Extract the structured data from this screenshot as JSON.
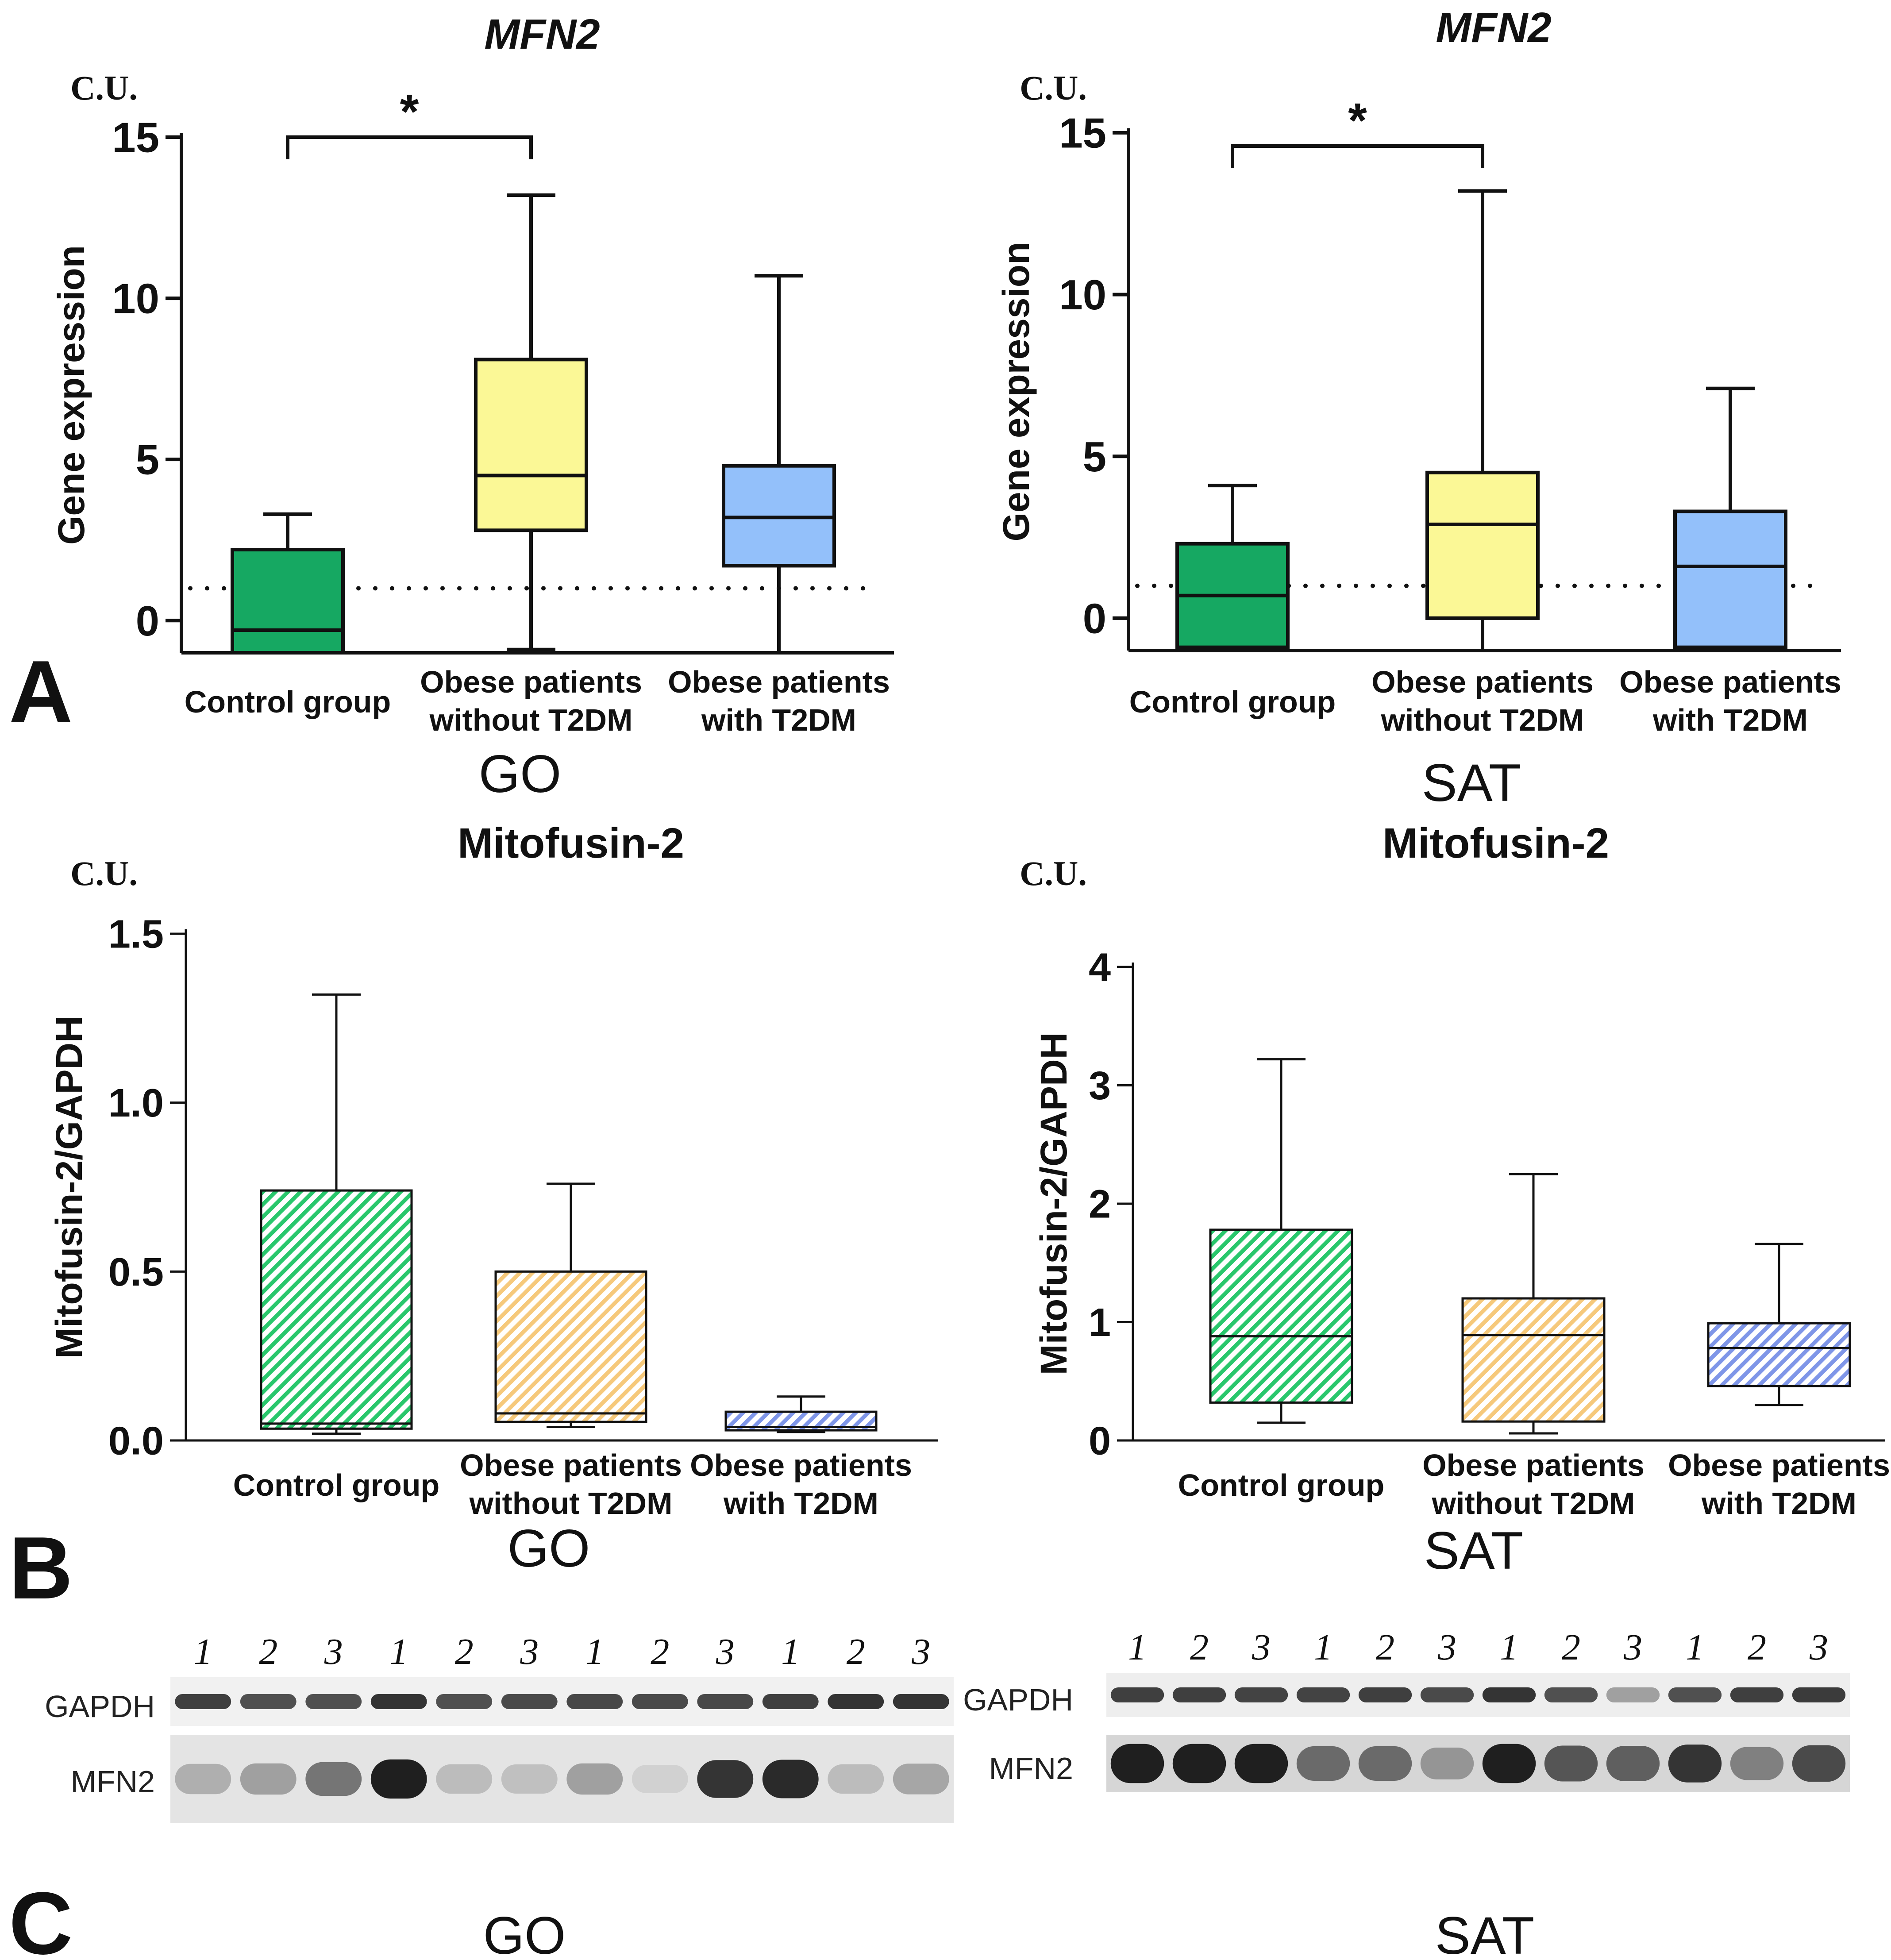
{
  "figure": {
    "panel_labels": [
      "A",
      "B",
      "C"
    ],
    "colors": {
      "control": "#16a862",
      "obese_no_t2dm": "#fbf896",
      "obese_t2dm": "#93c0fa",
      "control_hatch": "#29c76c",
      "obese_no_t2dm_hatch": "#f6c97b",
      "obese_t2dm_hatch": "#7f96e8"
    }
  },
  "chart_data": [
    {
      "id": "A-GO",
      "type": "boxplot",
      "title": "MFN2",
      "unit_label": "C.U.",
      "ylabel": "Gene expression",
      "xlabel": "GO",
      "ylim": [
        -1,
        15
      ],
      "yticks": [
        0,
        5,
        10,
        15
      ],
      "tick_labels": [
        "0",
        "5",
        "10",
        "15"
      ],
      "reference_line": 1,
      "fill": "solid",
      "significance": {
        "from": 0,
        "to": 1,
        "label": "*"
      },
      "groups": [
        {
          "label_lines": [
            "Control group"
          ],
          "min": -1,
          "q1": -1,
          "median": -0.3,
          "q3": 2.2,
          "max": 3.3,
          "color": "#16a862"
        },
        {
          "label_lines": [
            "Obese patients",
            "without T2DM"
          ],
          "min": -0.9,
          "q1": 2.8,
          "median": 4.5,
          "q3": 8.1,
          "max": 13.2,
          "color": "#fbf896"
        },
        {
          "label_lines": [
            "Obese patients",
            "with T2DM"
          ],
          "min": -1,
          "q1": 1.7,
          "median": 3.2,
          "q3": 4.8,
          "max": 10.7,
          "color": "#93c0fa"
        }
      ]
    },
    {
      "id": "A-SAT",
      "type": "boxplot",
      "title": "MFN2",
      "unit_label": "C.U.",
      "ylabel": "Gene expression",
      "xlabel": "SAT",
      "ylim": [
        -1,
        15
      ],
      "yticks": [
        0,
        5,
        10,
        15
      ],
      "tick_labels": [
        "0",
        "5",
        "10",
        "15"
      ],
      "reference_line": 1,
      "fill": "solid",
      "significance": {
        "from": 0,
        "to": 1,
        "label": "*"
      },
      "groups": [
        {
          "label_lines": [
            "Control group"
          ],
          "min": -0.9,
          "q1": -0.9,
          "median": 0.7,
          "q3": 2.3,
          "max": 4.1,
          "color": "#16a862"
        },
        {
          "label_lines": [
            "Obese patients",
            "without T2DM"
          ],
          "min": -1,
          "q1": 0,
          "median": 2.9,
          "q3": 4.5,
          "max": 13.2,
          "color": "#fbf896"
        },
        {
          "label_lines": [
            "Obese patients",
            "with T2DM"
          ],
          "min": -0.9,
          "q1": -0.9,
          "median": 1.6,
          "q3": 3.3,
          "max": 7.1,
          "color": "#93c0fa"
        }
      ]
    },
    {
      "id": "B-GO",
      "type": "boxplot",
      "title": "Mitofusin-2",
      "unit_label": "C.U.",
      "ylabel": "Mitofusin-2/GAPDH",
      "xlabel": "GO",
      "ylim": [
        0,
        1.5
      ],
      "yticks": [
        0,
        0.5,
        1.0,
        1.5
      ],
      "tick_labels": [
        "0.0",
        "0.5",
        "1.0",
        "1.5"
      ],
      "reference_line": null,
      "fill": "hatch",
      "significance": null,
      "groups": [
        {
          "label_lines": [
            "Control group"
          ],
          "min": 0.02,
          "q1": 0.035,
          "median": 0.05,
          "q3": 0.74,
          "max": 1.32,
          "color": "#29c76c"
        },
        {
          "label_lines": [
            "Obese patients",
            "without T2DM"
          ],
          "min": 0.04,
          "q1": 0.055,
          "median": 0.08,
          "q3": 0.5,
          "max": 0.76,
          "color": "#f6c97b"
        },
        {
          "label_lines": [
            "Obese patients",
            "with T2DM"
          ],
          "min": 0.025,
          "q1": 0.03,
          "median": 0.04,
          "q3": 0.085,
          "max": 0.13,
          "color": "#7f96e8"
        }
      ]
    },
    {
      "id": "B-SAT",
      "type": "boxplot",
      "title": "Mitofusin-2",
      "unit_label": "C.U.",
      "ylabel": "Mitofusin-2/GAPDH",
      "xlabel": "SAT",
      "ylim": [
        0,
        4
      ],
      "yticks": [
        0,
        1,
        2,
        3,
        4
      ],
      "tick_labels": [
        "0",
        "1",
        "2",
        "3",
        "4"
      ],
      "reference_line": null,
      "fill": "hatch",
      "significance": null,
      "groups": [
        {
          "label_lines": [
            "Control group"
          ],
          "min": 0.15,
          "q1": 0.32,
          "median": 0.88,
          "q3": 1.78,
          "max": 3.22,
          "color": "#29c76c"
        },
        {
          "label_lines": [
            "Obese patients",
            "without T2DM"
          ],
          "min": 0.06,
          "q1": 0.16,
          "median": 0.89,
          "q3": 1.2,
          "max": 2.25,
          "color": "#f6c97b"
        },
        {
          "label_lines": [
            "Obese patients",
            "with T2DM"
          ],
          "min": 0.3,
          "q1": 0.46,
          "median": 0.78,
          "q3": 0.99,
          "max": 1.66,
          "color": "#7f96e8"
        }
      ]
    }
  ],
  "blots": [
    {
      "id": "C-GO",
      "xlabel": "GO",
      "lane_labels": [
        "1",
        "2",
        "3",
        "1",
        "2",
        "3",
        "1",
        "2",
        "3",
        "1",
        "2",
        "3"
      ],
      "rows": [
        {
          "label": "GAPDH",
          "intensity": [
            0.8,
            0.72,
            0.72,
            0.85,
            0.72,
            0.75,
            0.76,
            0.75,
            0.76,
            0.8,
            0.85,
            0.85
          ]
        },
        {
          "label": "MFN2",
          "intensity": [
            0.28,
            0.35,
            0.55,
            0.95,
            0.22,
            0.2,
            0.35,
            0.12,
            0.85,
            0.9,
            0.22,
            0.32
          ]
        }
      ]
    },
    {
      "id": "C-SAT",
      "xlabel": "SAT",
      "lane_labels": [
        "1",
        "2",
        "3",
        "1",
        "2",
        "3",
        "1",
        "2",
        "3",
        "1",
        "2",
        "3"
      ],
      "rows": [
        {
          "label": "GAPDH",
          "intensity": [
            0.8,
            0.8,
            0.78,
            0.78,
            0.8,
            0.75,
            0.85,
            0.72,
            0.35,
            0.72,
            0.8,
            0.82
          ]
        },
        {
          "label": "MFN2",
          "intensity": [
            0.95,
            0.95,
            0.95,
            0.6,
            0.6,
            0.4,
            0.95,
            0.7,
            0.65,
            0.85,
            0.5,
            0.75
          ]
        }
      ]
    }
  ]
}
